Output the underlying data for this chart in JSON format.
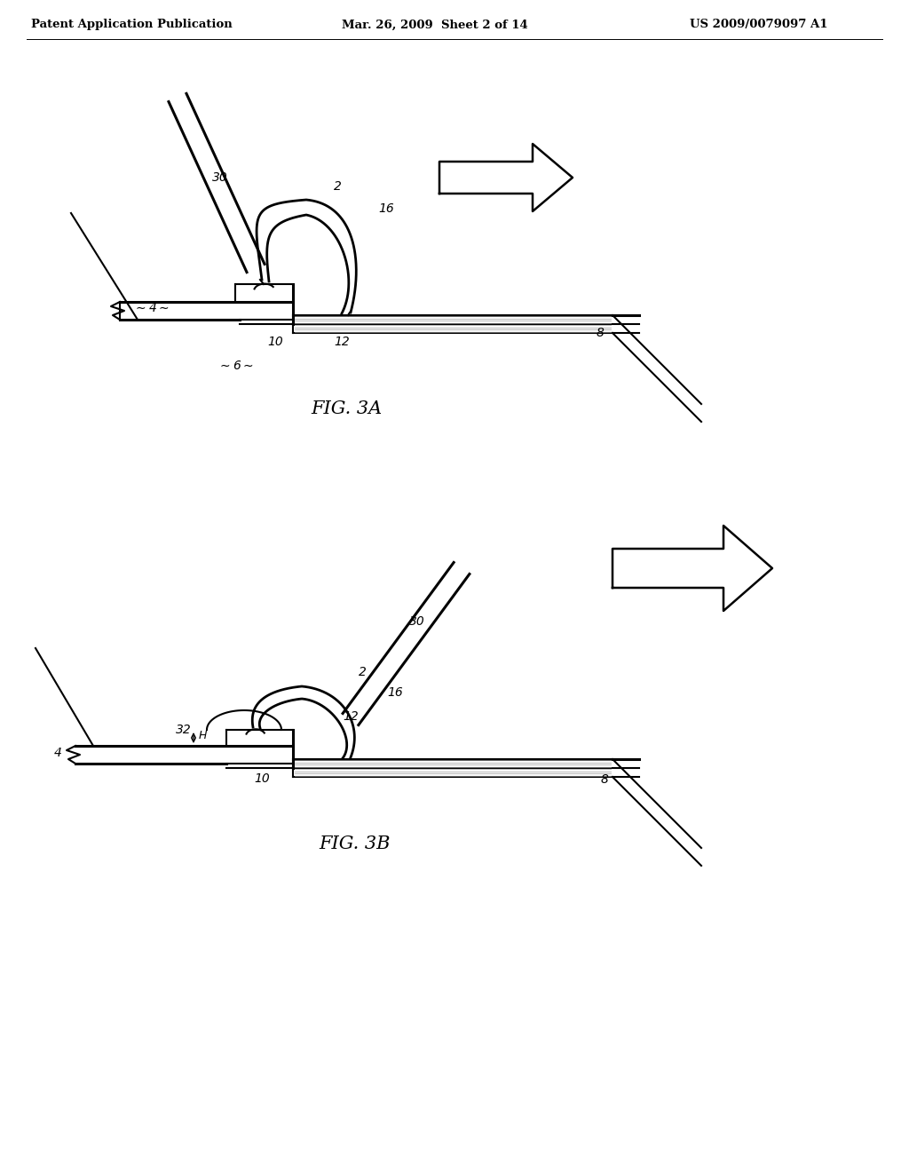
{
  "background_color": "#ffffff",
  "header_text": "Patent Application Publication",
  "header_date": "Mar. 26, 2009  Sheet 2 of 14",
  "header_patent": "US 2009/0079097 A1",
  "fig3a_label": "FIG. 3A",
  "fig3b_label": "FIG. 3B",
  "line_color": "#000000",
  "gray_color": "#555555",
  "lw": 1.5,
  "tlw": 2.2,
  "label_fontsize": 10,
  "fig_label_fontsize": 15
}
